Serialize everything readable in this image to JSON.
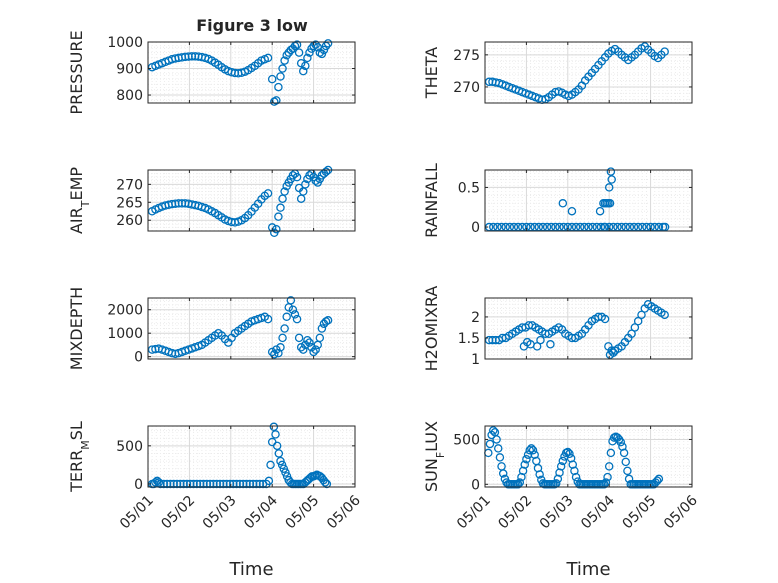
{
  "figure": {
    "title": "Figure 3 low"
  },
  "colors": {
    "marker": "#0072BD",
    "axis": "#262626",
    "grid": "#d9d9d9",
    "minor_grid": "#ececec"
  },
  "chart_data": [
    {
      "type": "scatter",
      "title": "Figure 3 low",
      "ylabel": "PRESSURE",
      "xlabel": "",
      "xlim": [
        0,
        5
      ],
      "ylim": [
        770,
        1000
      ],
      "yticks": [
        800,
        900,
        1000
      ],
      "xtick_labels": [
        "05/01",
        "05/02",
        "05/03",
        "05/04",
        "05/05",
        "05/06"
      ],
      "show_xticklabels": false,
      "grid": true,
      "x": [
        0.1,
        0.18,
        0.26,
        0.34,
        0.42,
        0.5,
        0.58,
        0.66,
        0.74,
        0.82,
        0.9,
        0.98,
        1.06,
        1.14,
        1.22,
        1.3,
        1.38,
        1.46,
        1.54,
        1.62,
        1.7,
        1.78,
        1.86,
        1.94,
        2.02,
        2.1,
        2.18,
        2.26,
        2.34,
        2.42,
        2.5,
        2.58,
        2.66,
        2.74,
        2.82,
        2.9,
        3.0,
        3.05,
        3.1,
        3.15,
        3.2,
        3.25,
        3.3,
        3.35,
        3.4,
        3.45,
        3.5,
        3.55,
        3.6,
        3.65,
        3.7,
        3.75,
        3.8,
        3.85,
        3.9,
        3.95,
        4.0,
        4.05,
        4.1,
        4.15,
        4.2,
        4.25,
        4.3,
        4.35
      ],
      "y": [
        905,
        910,
        915,
        920,
        925,
        930,
        935,
        938,
        940,
        942,
        944,
        945,
        946,
        946,
        945,
        943,
        940,
        936,
        930,
        922,
        914,
        905,
        897,
        890,
        886,
        883,
        882,
        884,
        888,
        894,
        902,
        910,
        920,
        930,
        935,
        940,
        860,
        775,
        780,
        830,
        870,
        900,
        930,
        950,
        960,
        970,
        975,
        985,
        990,
        960,
        920,
        890,
        910,
        940,
        960,
        975,
        985,
        990,
        980,
        960,
        955,
        970,
        985,
        995
      ]
    },
    {
      "type": "scatter",
      "title": "",
      "ylabel": "THETA",
      "xlabel": "",
      "xlim": [
        0,
        5
      ],
      "ylim": [
        267.5,
        277
      ],
      "yticks": [
        270,
        275
      ],
      "xtick_labels": [
        "05/01",
        "05/02",
        "05/03",
        "05/04",
        "05/05",
        "05/06"
      ],
      "show_xticklabels": false,
      "grid": true,
      "x": [
        0.1,
        0.18,
        0.26,
        0.34,
        0.42,
        0.5,
        0.58,
        0.66,
        0.74,
        0.82,
        0.9,
        0.98,
        1.06,
        1.14,
        1.22,
        1.3,
        1.38,
        1.46,
        1.54,
        1.62,
        1.7,
        1.78,
        1.86,
        1.94,
        2.02,
        2.1,
        2.18,
        2.26,
        2.34,
        2.42,
        2.5,
        2.58,
        2.66,
        2.74,
        2.82,
        2.9,
        2.98,
        3.06,
        3.14,
        3.22,
        3.3,
        3.38,
        3.46,
        3.54,
        3.62,
        3.7,
        3.78,
        3.86,
        3.94,
        4.02,
        4.1,
        4.18,
        4.26,
        4.34
      ],
      "y": [
        270.8,
        270.8,
        270.7,
        270.6,
        270.4,
        270.2,
        270.0,
        269.8,
        269.6,
        269.4,
        269.2,
        269.0,
        268.8,
        268.6,
        268.4,
        268.2,
        268.0,
        268.1,
        268.4,
        268.8,
        269.2,
        269.3,
        269.1,
        268.8,
        268.6,
        268.8,
        269.2,
        269.6,
        270.2,
        271.0,
        271.6,
        272.2,
        272.8,
        273.4,
        274.0,
        274.6,
        275.2,
        275.6,
        275.9,
        275.5,
        275.0,
        274.6,
        274.2,
        274.6,
        275.0,
        275.5,
        276.0,
        276.3,
        275.8,
        275.3,
        274.8,
        274.5,
        275.0,
        275.5
      ]
    },
    {
      "type": "scatter",
      "title": "",
      "ylabel": "AIR_TEMP",
      "xlabel": "",
      "xlim": [
        0,
        5
      ],
      "ylim": [
        257,
        274
      ],
      "yticks": [
        260,
        265,
        270
      ],
      "xtick_labels": [
        "05/01",
        "05/02",
        "05/03",
        "05/04",
        "05/05",
        "05/06"
      ],
      "show_xticklabels": false,
      "grid": true,
      "x": [
        0.1,
        0.18,
        0.26,
        0.34,
        0.42,
        0.5,
        0.58,
        0.66,
        0.74,
        0.82,
        0.9,
        0.98,
        1.06,
        1.14,
        1.22,
        1.3,
        1.38,
        1.46,
        1.54,
        1.62,
        1.7,
        1.78,
        1.86,
        1.94,
        2.02,
        2.1,
        2.18,
        2.26,
        2.34,
        2.42,
        2.5,
        2.58,
        2.66,
        2.74,
        2.82,
        2.9,
        3.0,
        3.05,
        3.1,
        3.15,
        3.2,
        3.25,
        3.3,
        3.35,
        3.4,
        3.45,
        3.5,
        3.55,
        3.6,
        3.65,
        3.7,
        3.75,
        3.8,
        3.85,
        3.9,
        3.95,
        4.0,
        4.05,
        4.1,
        4.15,
        4.2,
        4.25,
        4.3,
        4.35
      ],
      "y": [
        262.5,
        263.0,
        263.4,
        263.8,
        264.1,
        264.3,
        264.5,
        264.6,
        264.7,
        264.7,
        264.7,
        264.6,
        264.4,
        264.2,
        264.0,
        263.7,
        263.4,
        263.0,
        262.5,
        262.0,
        261.4,
        260.8,
        260.2,
        259.8,
        259.5,
        259.4,
        259.6,
        260.0,
        260.6,
        261.4,
        262.4,
        263.5,
        264.6,
        265.8,
        266.8,
        267.5,
        258.0,
        256.5,
        257.5,
        261.0,
        263.5,
        266.0,
        268.0,
        269.5,
        270.5,
        271.5,
        272.5,
        273.0,
        272.0,
        269.0,
        266.0,
        268.0,
        270.0,
        271.5,
        272.5,
        273.0,
        272.0,
        271.0,
        270.5,
        271.5,
        272.5,
        273.0,
        273.5,
        274.0
      ]
    },
    {
      "type": "scatter",
      "title": "",
      "ylabel": "RAINFALL",
      "xlabel": "",
      "xlim": [
        0,
        5
      ],
      "ylim": [
        -0.05,
        0.72
      ],
      "yticks": [
        0,
        0.5
      ],
      "xtick_labels": [
        "05/01",
        "05/02",
        "05/03",
        "05/04",
        "05/05",
        "05/06"
      ],
      "show_xticklabels": false,
      "grid": true,
      "x": [
        0.1,
        0.2,
        0.3,
        0.4,
        0.5,
        0.6,
        0.7,
        0.8,
        0.9,
        1.0,
        1.1,
        1.2,
        1.3,
        1.4,
        1.5,
        1.6,
        1.7,
        1.8,
        1.9,
        2.0,
        2.1,
        2.2,
        2.3,
        2.4,
        2.5,
        2.6,
        2.7,
        2.8,
        2.9,
        3.0,
        3.1,
        3.2,
        3.3,
        3.4,
        3.5,
        3.6,
        3.7,
        3.8,
        3.9,
        4.0,
        4.1,
        4.2,
        4.3,
        4.35,
        1.88,
        2.1,
        2.78,
        2.86,
        2.9,
        2.94,
        2.98,
        3.02,
        2.88,
        3.0,
        3.04,
        3.06
      ],
      "y": [
        0,
        0,
        0,
        0,
        0,
        0,
        0,
        0,
        0,
        0,
        0,
        0,
        0,
        0,
        0,
        0,
        0,
        0,
        0,
        0,
        0,
        0,
        0,
        0,
        0,
        0,
        0,
        0,
        0,
        0,
        0,
        0,
        0,
        0,
        0,
        0,
        0,
        0,
        0,
        0,
        0,
        0,
        0,
        0,
        0.3,
        0.2,
        0.2,
        0.3,
        0.3,
        0.3,
        0.3,
        0.3,
        0,
        0.5,
        0.7,
        0.6
      ]
    },
    {
      "type": "scatter",
      "title": "",
      "ylabel": "MIXDEPTH",
      "xlabel": "",
      "xlim": [
        0,
        5
      ],
      "ylim": [
        -100,
        2500
      ],
      "yticks": [
        0,
        1000,
        2000
      ],
      "xtick_labels": [
        "05/01",
        "05/02",
        "05/03",
        "05/04",
        "05/05",
        "05/06"
      ],
      "show_xticklabels": false,
      "grid": true,
      "x": [
        0.1,
        0.18,
        0.26,
        0.34,
        0.42,
        0.5,
        0.58,
        0.66,
        0.74,
        0.82,
        0.9,
        0.98,
        1.06,
        1.14,
        1.22,
        1.3,
        1.38,
        1.46,
        1.54,
        1.62,
        1.7,
        1.78,
        1.86,
        1.94,
        2.02,
        2.1,
        2.18,
        2.26,
        2.34,
        2.42,
        2.5,
        2.58,
        2.66,
        2.74,
        2.82,
        2.9,
        3.0,
        3.05,
        3.1,
        3.15,
        3.2,
        3.25,
        3.3,
        3.35,
        3.4,
        3.45,
        3.5,
        3.55,
        3.6,
        3.65,
        3.7,
        3.75,
        3.8,
        3.85,
        3.9,
        3.95,
        4.0,
        4.05,
        4.1,
        4.15,
        4.2,
        4.25,
        4.3,
        4.35
      ],
      "y": [
        300,
        320,
        340,
        300,
        250,
        200,
        150,
        120,
        150,
        200,
        250,
        300,
        350,
        400,
        450,
        500,
        600,
        700,
        800,
        900,
        1000,
        900,
        750,
        600,
        800,
        1000,
        1100,
        1200,
        1300,
        1400,
        1500,
        1550,
        1600,
        1650,
        1700,
        1600,
        200,
        100,
        300,
        150,
        400,
        800,
        1200,
        1700,
        2100,
        2400,
        2000,
        1800,
        1600,
        800,
        400,
        300,
        500,
        700,
        600,
        400,
        200,
        300,
        500,
        800,
        1200,
        1400,
        1500,
        1550
      ]
    },
    {
      "type": "scatter",
      "title": "",
      "ylabel": "H2OMIXRA",
      "xlabel": "",
      "xlim": [
        0,
        5
      ],
      "ylim": [
        1,
        2.45
      ],
      "yticks": [
        1,
        1.5,
        2
      ],
      "xtick_labels": [
        "05/01",
        "05/02",
        "05/03",
        "05/04",
        "05/05",
        "05/06"
      ],
      "show_xticklabels": false,
      "grid": true,
      "x": [
        0.1,
        0.18,
        0.26,
        0.34,
        0.42,
        0.5,
        0.58,
        0.66,
        0.74,
        0.82,
        0.9,
        0.98,
        1.06,
        1.14,
        1.22,
        1.3,
        1.38,
        1.46,
        1.54,
        1.62,
        1.7,
        1.78,
        1.86,
        1.94,
        2.02,
        2.1,
        2.18,
        2.26,
        2.34,
        2.42,
        2.5,
        2.58,
        2.66,
        2.74,
        2.82,
        2.9,
        2.98,
        3.06,
        3.14,
        3.22,
        3.3,
        3.38,
        3.46,
        3.54,
        3.62,
        3.7,
        3.78,
        3.86,
        3.94,
        4.02,
        4.1,
        4.18,
        4.26,
        4.34,
        0.94,
        1.02,
        1.1,
        1.26,
        1.34,
        1.58,
        3.02,
        3.1
      ],
      "y": [
        1.45,
        1.45,
        1.45,
        1.45,
        1.5,
        1.5,
        1.55,
        1.6,
        1.65,
        1.7,
        1.75,
        1.75,
        1.8,
        1.8,
        1.75,
        1.7,
        1.65,
        1.6,
        1.6,
        1.65,
        1.7,
        1.75,
        1.7,
        1.6,
        1.55,
        1.5,
        1.5,
        1.55,
        1.6,
        1.7,
        1.8,
        1.9,
        1.95,
        2.0,
        2.0,
        1.95,
        1.3,
        1.2,
        1.2,
        1.25,
        1.3,
        1.4,
        1.5,
        1.6,
        1.75,
        1.9,
        2.05,
        2.2,
        2.3,
        2.25,
        2.2,
        2.15,
        2.1,
        2.05,
        1.3,
        1.4,
        1.35,
        1.3,
        1.45,
        1.35,
        1.1,
        1.15
      ]
    },
    {
      "type": "scatter",
      "title": "",
      "ylabel": "TERR_MSL",
      "xlabel": "Time",
      "xlim": [
        0,
        5
      ],
      "ylim": [
        -40,
        760
      ],
      "yticks": [
        0,
        500
      ],
      "xtick_labels": [
        "05/01",
        "05/02",
        "05/03",
        "05/04",
        "05/05",
        "05/06"
      ],
      "show_xticklabels": true,
      "grid": true,
      "x": [
        0.1,
        0.14,
        0.18,
        0.22,
        0.26,
        0.3,
        0.38,
        0.46,
        0.54,
        0.62,
        0.7,
        0.78,
        0.86,
        0.94,
        1.02,
        1.1,
        1.18,
        1.26,
        1.34,
        1.42,
        1.5,
        1.58,
        1.66,
        1.74,
        1.82,
        1.9,
        1.98,
        2.06,
        2.14,
        2.22,
        2.3,
        2.38,
        2.46,
        2.54,
        2.62,
        2.7,
        2.78,
        2.86,
        2.92,
        2.96,
        3.0,
        3.04,
        3.08,
        3.12,
        3.16,
        3.2,
        3.24,
        3.28,
        3.32,
        3.36,
        3.4,
        3.44,
        3.48,
        3.52,
        3.56,
        3.6,
        3.64,
        3.68,
        3.72,
        3.76,
        3.8,
        3.84,
        3.88,
        3.92,
        3.96,
        4.0,
        4.04,
        4.08,
        4.12,
        4.16,
        4.2,
        4.24,
        4.28,
        4.32
      ],
      "y": [
        0,
        0,
        20,
        40,
        20,
        0,
        0,
        0,
        0,
        0,
        0,
        0,
        0,
        0,
        0,
        0,
        0,
        0,
        0,
        0,
        0,
        0,
        0,
        0,
        0,
        0,
        0,
        0,
        0,
        0,
        0,
        0,
        0,
        0,
        0,
        0,
        0,
        0,
        40,
        250,
        550,
        750,
        650,
        500,
        400,
        300,
        250,
        200,
        150,
        100,
        50,
        20,
        0,
        0,
        0,
        0,
        0,
        0,
        0,
        0,
        20,
        40,
        60,
        80,
        100,
        100,
        110,
        120,
        110,
        100,
        80,
        50,
        20,
        0
      ]
    },
    {
      "type": "scatter",
      "title": "",
      "ylabel": "SUN_FLUX",
      "xlabel": "Time",
      "xlim": [
        0,
        5
      ],
      "ylim": [
        -30,
        650
      ],
      "yticks": [
        0,
        500
      ],
      "xtick_labels": [
        "05/01",
        "05/02",
        "05/03",
        "05/04",
        "05/05",
        "05/06"
      ],
      "show_xticklabels": true,
      "grid": true,
      "x": [
        0.08,
        0.12,
        0.16,
        0.2,
        0.24,
        0.28,
        0.32,
        0.36,
        0.4,
        0.44,
        0.48,
        0.52,
        0.56,
        0.6,
        0.64,
        0.68,
        0.72,
        0.76,
        0.8,
        0.84,
        0.88,
        0.92,
        0.96,
        1.0,
        1.04,
        1.08,
        1.12,
        1.16,
        1.2,
        1.24,
        1.28,
        1.32,
        1.36,
        1.4,
        1.44,
        1.48,
        1.52,
        1.56,
        1.6,
        1.64,
        1.68,
        1.72,
        1.76,
        1.8,
        1.84,
        1.88,
        1.92,
        1.96,
        2.0,
        2.04,
        2.08,
        2.12,
        2.16,
        2.2,
        2.24,
        2.28,
        2.32,
        2.36,
        2.4,
        2.44,
        2.48,
        2.52,
        2.56,
        2.6,
        2.64,
        2.68,
        2.72,
        2.76,
        2.8,
        2.84,
        2.88,
        2.92,
        2.96,
        3.0,
        3.04,
        3.08,
        3.12,
        3.16,
        3.2,
        3.24,
        3.28,
        3.32,
        3.36,
        3.4,
        3.44,
        3.48,
        3.52,
        3.56,
        3.6,
        3.64,
        3.68,
        3.72,
        3.76,
        3.8,
        3.84,
        3.88,
        3.92,
        3.96,
        4.0,
        4.04,
        4.08,
        4.12,
        4.16,
        4.2
      ],
      "y": [
        350,
        450,
        550,
        600,
        580,
        500,
        400,
        300,
        200,
        120,
        60,
        20,
        0,
        0,
        0,
        0,
        0,
        0,
        0,
        20,
        80,
        150,
        220,
        280,
        330,
        380,
        400,
        380,
        330,
        260,
        180,
        110,
        50,
        10,
        0,
        0,
        0,
        0,
        0,
        0,
        0,
        10,
        60,
        130,
        200,
        260,
        310,
        350,
        360,
        340,
        290,
        220,
        150,
        80,
        30,
        0,
        0,
        0,
        0,
        0,
        0,
        0,
        0,
        0,
        0,
        0,
        0,
        0,
        0,
        0,
        0,
        20,
        80,
        200,
        350,
        480,
        520,
        530,
        520,
        500,
        470,
        420,
        350,
        250,
        150,
        60,
        0,
        0,
        0,
        0,
        0,
        0,
        0,
        0,
        0,
        0,
        0,
        0,
        0,
        0,
        0,
        20,
        40,
        60
      ]
    }
  ]
}
